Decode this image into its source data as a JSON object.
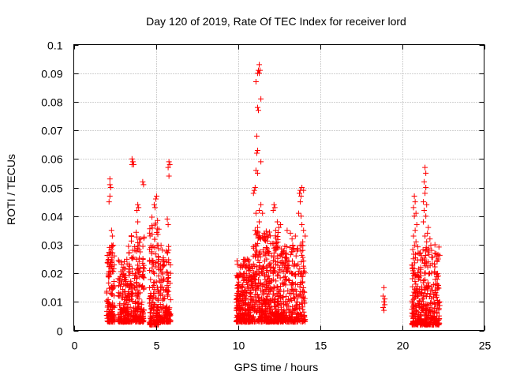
{
  "chart_data": {
    "type": "scatter",
    "title": "Day 120 of 2019, Rate Of TEC Index for receiver lord",
    "xlabel": "GPS time / hours",
    "ylabel": "ROTI / TECUs",
    "xlim": [
      0,
      25
    ],
    "ylim": [
      0,
      0.1
    ],
    "x_ticks": [
      0,
      5,
      10,
      15,
      20,
      25
    ],
    "x_tick_labels": [
      "0",
      "5",
      "10",
      "15",
      "20",
      "25"
    ],
    "y_ticks": [
      0,
      0.01,
      0.02,
      0.03,
      0.04,
      0.05,
      0.06,
      0.07,
      0.08,
      0.09,
      0.1
    ],
    "y_tick_labels": [
      "0",
      "0.01",
      "0.02",
      "0.03",
      "0.04",
      "0.05",
      "0.06",
      "0.07",
      "0.08",
      "0.09",
      "0.1"
    ],
    "grid": true,
    "marker": "+",
    "color": "#ff0000",
    "clusters": [
      {
        "x_range": [
          2.0,
          2.5
        ],
        "y_range": [
          0.003,
          0.03
        ],
        "count": 140
      },
      {
        "x_range": [
          2.7,
          3.3
        ],
        "y_range": [
          0.003,
          0.025
        ],
        "count": 140
      },
      {
        "x_range": [
          3.3,
          4.3
        ],
        "y_range": [
          0.003,
          0.035
        ],
        "count": 220
      },
      {
        "x_range": [
          4.6,
          5.2
        ],
        "y_range": [
          0.002,
          0.04
        ],
        "count": 160
      },
      {
        "x_range": [
          5.2,
          5.9
        ],
        "y_range": [
          0.003,
          0.03
        ],
        "count": 150
      },
      {
        "x_range": [
          9.9,
          10.9
        ],
        "y_range": [
          0.003,
          0.025
        ],
        "count": 280
      },
      {
        "x_range": [
          10.9,
          12.5
        ],
        "y_range": [
          0.003,
          0.035
        ],
        "count": 420
      },
      {
        "x_range": [
          12.5,
          14.1
        ],
        "y_range": [
          0.003,
          0.03
        ],
        "count": 320
      },
      {
        "x_range": [
          20.6,
          21.2
        ],
        "y_range": [
          0.002,
          0.03
        ],
        "count": 160
      },
      {
        "x_range": [
          21.2,
          22.3
        ],
        "y_range": [
          0.002,
          0.03
        ],
        "count": 240
      }
    ],
    "points": [
      [
        2.2,
        0.053
      ],
      [
        2.2,
        0.051
      ],
      [
        2.25,
        0.05
      ],
      [
        2.2,
        0.047
      ],
      [
        2.15,
        0.045
      ],
      [
        2.3,
        0.035
      ],
      [
        2.35,
        0.033
      ],
      [
        3.55,
        0.06
      ],
      [
        3.6,
        0.059
      ],
      [
        3.55,
        0.058
      ],
      [
        3.65,
        0.058
      ],
      [
        4.2,
        0.052
      ],
      [
        4.25,
        0.051
      ],
      [
        3.9,
        0.044
      ],
      [
        3.95,
        0.043
      ],
      [
        3.85,
        0.042
      ],
      [
        3.9,
        0.038
      ],
      [
        4.9,
        0.044
      ],
      [
        5.0,
        0.046
      ],
      [
        5.05,
        0.047
      ],
      [
        4.95,
        0.043
      ],
      [
        5.8,
        0.059
      ],
      [
        5.85,
        0.058
      ],
      [
        5.75,
        0.057
      ],
      [
        5.8,
        0.054
      ],
      [
        5.7,
        0.039
      ],
      [
        5.75,
        0.037
      ],
      [
        11.3,
        0.093
      ],
      [
        11.25,
        0.091
      ],
      [
        11.3,
        0.09
      ],
      [
        11.2,
        0.09
      ],
      [
        11.35,
        0.091
      ],
      [
        11.1,
        0.087
      ],
      [
        11.4,
        0.081
      ],
      [
        11.2,
        0.078
      ],
      [
        11.25,
        0.077
      ],
      [
        11.15,
        0.068
      ],
      [
        11.2,
        0.063
      ],
      [
        11.15,
        0.062
      ],
      [
        11.4,
        0.059
      ],
      [
        11.1,
        0.056
      ],
      [
        11.2,
        0.055
      ],
      [
        11.0,
        0.049
      ],
      [
        11.05,
        0.05
      ],
      [
        10.95,
        0.048
      ],
      [
        11.4,
        0.044
      ],
      [
        11.3,
        0.042
      ],
      [
        11.5,
        0.041
      ],
      [
        11.1,
        0.041
      ],
      [
        11.3,
        0.038
      ],
      [
        11.05,
        0.035
      ],
      [
        11.6,
        0.034
      ],
      [
        11.2,
        0.036
      ],
      [
        12.2,
        0.044
      ],
      [
        12.25,
        0.043
      ],
      [
        12.15,
        0.042
      ],
      [
        12.4,
        0.038
      ],
      [
        12.5,
        0.036
      ],
      [
        12.3,
        0.035
      ],
      [
        12.6,
        0.037
      ],
      [
        13.0,
        0.035
      ],
      [
        13.5,
        0.033
      ],
      [
        13.2,
        0.034
      ],
      [
        13.3,
        0.032
      ],
      [
        13.75,
        0.048
      ],
      [
        13.8,
        0.049
      ],
      [
        13.9,
        0.05
      ],
      [
        14.0,
        0.049
      ],
      [
        13.85,
        0.047
      ],
      [
        13.8,
        0.045
      ],
      [
        13.7,
        0.041
      ],
      [
        13.85,
        0.04
      ],
      [
        13.9,
        0.037
      ],
      [
        14.0,
        0.035
      ],
      [
        14.1,
        0.033
      ],
      [
        13.95,
        0.031
      ],
      [
        18.9,
        0.015
      ],
      [
        18.85,
        0.012
      ],
      [
        18.95,
        0.011
      ],
      [
        18.9,
        0.01
      ],
      [
        18.95,
        0.009
      ],
      [
        18.85,
        0.008
      ],
      [
        18.9,
        0.007
      ],
      [
        20.75,
        0.047
      ],
      [
        20.8,
        0.045
      ],
      [
        20.7,
        0.043
      ],
      [
        20.85,
        0.041
      ],
      [
        20.75,
        0.04
      ],
      [
        20.9,
        0.037
      ],
      [
        20.8,
        0.035
      ],
      [
        20.7,
        0.033
      ],
      [
        20.85,
        0.031
      ],
      [
        21.4,
        0.057
      ],
      [
        21.45,
        0.055
      ],
      [
        21.35,
        0.052
      ],
      [
        21.45,
        0.05
      ],
      [
        21.4,
        0.048
      ],
      [
        21.3,
        0.045
      ],
      [
        21.5,
        0.044
      ],
      [
        21.35,
        0.042
      ],
      [
        21.45,
        0.04
      ],
      [
        21.3,
        0.038
      ],
      [
        21.6,
        0.036
      ],
      [
        21.55,
        0.034
      ],
      [
        21.4,
        0.033
      ],
      [
        21.7,
        0.032
      ],
      [
        21.5,
        0.031
      ],
      [
        21.8,
        0.028
      ],
      [
        22.0,
        0.027
      ],
      [
        22.1,
        0.026
      ],
      [
        22.2,
        0.025
      ]
    ]
  }
}
